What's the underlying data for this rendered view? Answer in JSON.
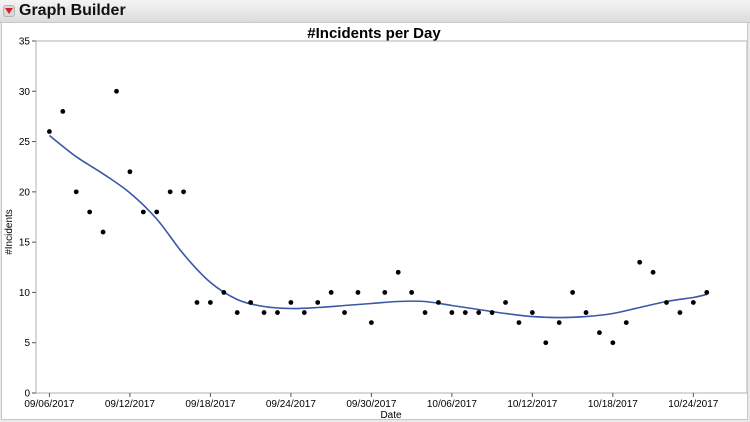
{
  "window": {
    "title": "Graph Builder",
    "menu_icon": "red-disclosure-triangle-icon"
  },
  "chart_data": {
    "type": "scatter",
    "title": "#Incidents per Day",
    "xlabel": "Date",
    "ylabel": "#Incidents",
    "xlim": [
      "2017-09-05",
      "2017-10-28"
    ],
    "ylim": [
      0,
      35
    ],
    "y_ticks": [
      0,
      5,
      10,
      15,
      20,
      25,
      30,
      35
    ],
    "x_ticks": [
      "09/06/2017",
      "09/12/2017",
      "09/18/2017",
      "09/24/2017",
      "09/30/2017",
      "10/06/2017",
      "10/12/2017",
      "10/18/2017",
      "10/24/2017"
    ],
    "grid": false,
    "legend": "none",
    "colors": {
      "points": "#000000",
      "smoother": "#3b57a8"
    },
    "series": [
      {
        "type": "scatter",
        "points": [
          [
            "2017-09-06",
            26
          ],
          [
            "2017-09-07",
            28
          ],
          [
            "2017-09-08",
            20
          ],
          [
            "2017-09-09",
            18
          ],
          [
            "2017-09-10",
            16
          ],
          [
            "2017-09-11",
            30
          ],
          [
            "2017-09-12",
            22
          ],
          [
            "2017-09-13",
            18
          ],
          [
            "2017-09-14",
            18
          ],
          [
            "2017-09-15",
            20
          ],
          [
            "2017-09-16",
            20
          ],
          [
            "2017-09-17",
            9
          ],
          [
            "2017-09-18",
            9
          ],
          [
            "2017-09-19",
            10
          ],
          [
            "2017-09-20",
            8
          ],
          [
            "2017-09-21",
            9
          ],
          [
            "2017-09-22",
            8
          ],
          [
            "2017-09-23",
            8
          ],
          [
            "2017-09-24",
            9
          ],
          [
            "2017-09-25",
            8
          ],
          [
            "2017-09-26",
            9
          ],
          [
            "2017-09-27",
            10
          ],
          [
            "2017-09-28",
            8
          ],
          [
            "2017-09-29",
            10
          ],
          [
            "2017-09-30",
            7
          ],
          [
            "2017-10-01",
            10
          ],
          [
            "2017-10-02",
            12
          ],
          [
            "2017-10-03",
            10
          ],
          [
            "2017-10-04",
            8
          ],
          [
            "2017-10-05",
            9
          ],
          [
            "2017-10-06",
            8
          ],
          [
            "2017-10-07",
            8
          ],
          [
            "2017-10-08",
            8
          ],
          [
            "2017-10-09",
            8
          ],
          [
            "2017-10-10",
            9
          ],
          [
            "2017-10-11",
            7
          ],
          [
            "2017-10-12",
            8
          ],
          [
            "2017-10-13",
            5
          ],
          [
            "2017-10-14",
            7
          ],
          [
            "2017-10-15",
            10
          ],
          [
            "2017-10-16",
            8
          ],
          [
            "2017-10-17",
            6
          ],
          [
            "2017-10-18",
            5
          ],
          [
            "2017-10-19",
            7
          ],
          [
            "2017-10-20",
            13
          ],
          [
            "2017-10-21",
            12
          ],
          [
            "2017-10-22",
            9
          ],
          [
            "2017-10-23",
            8
          ],
          [
            "2017-10-24",
            9
          ],
          [
            "2017-10-25",
            10
          ]
        ]
      },
      {
        "type": "line",
        "smooth": true,
        "points": [
          [
            "2017-09-06",
            25.6
          ],
          [
            "2017-09-08",
            23.5
          ],
          [
            "2017-09-10",
            21.8
          ],
          [
            "2017-09-12",
            19.9
          ],
          [
            "2017-09-14",
            17.3
          ],
          [
            "2017-09-16",
            13.8
          ],
          [
            "2017-09-18",
            11.0
          ],
          [
            "2017-09-20",
            9.3
          ],
          [
            "2017-09-22",
            8.6
          ],
          [
            "2017-09-24",
            8.4
          ],
          [
            "2017-09-26",
            8.5
          ],
          [
            "2017-09-28",
            8.7
          ],
          [
            "2017-09-30",
            8.9
          ],
          [
            "2017-10-02",
            9.1
          ],
          [
            "2017-10-04",
            9.1
          ],
          [
            "2017-10-06",
            8.7
          ],
          [
            "2017-10-08",
            8.3
          ],
          [
            "2017-10-10",
            7.9
          ],
          [
            "2017-10-12",
            7.6
          ],
          [
            "2017-10-14",
            7.5
          ],
          [
            "2017-10-16",
            7.6
          ],
          [
            "2017-10-18",
            7.9
          ],
          [
            "2017-10-20",
            8.5
          ],
          [
            "2017-10-22",
            9.1
          ],
          [
            "2017-10-24",
            9.5
          ],
          [
            "2017-10-25",
            9.8
          ]
        ]
      }
    ]
  }
}
